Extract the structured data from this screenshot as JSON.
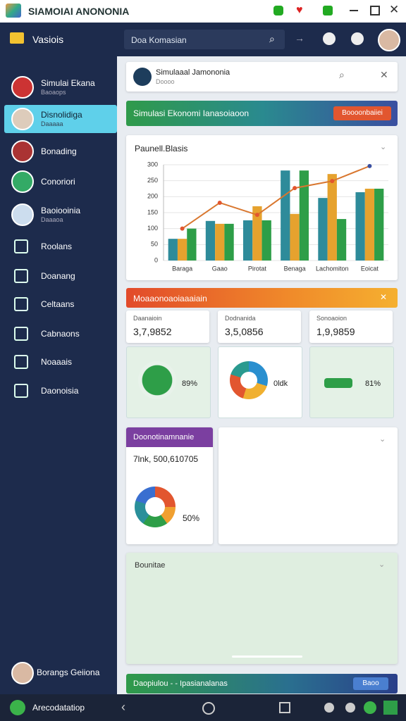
{
  "app": {
    "title": "SIAMOIAI ANONONIA",
    "bottom_label": "Arecodatatiop"
  },
  "sidebar": {
    "header": "Vasiois",
    "items": [
      {
        "label": "Simulai Ekana",
        "sub": "Baoaops"
      },
      {
        "label": "Disnolidiga",
        "sub": "Daaaaa"
      },
      {
        "label": "Bonading"
      },
      {
        "label": "Conoriori"
      },
      {
        "label": "Baoiooinia",
        "sub": "Daaaoa"
      },
      {
        "label": "Roolans"
      },
      {
        "label": "Doanang"
      },
      {
        "label": "Celtaans"
      },
      {
        "label": "Cabnaons"
      },
      {
        "label": "Noaaais"
      },
      {
        "label": "Daonoisia"
      }
    ],
    "profile": "Borangs Geiiona"
  },
  "search": {
    "placeholder": "Doa Komasian"
  },
  "main": {
    "dialog": {
      "title": "Simulaaal Jamononia",
      "sub": "Doooo"
    },
    "banner": {
      "title": "Simulasi Ekonomi Ianasoiaoon",
      "button": "Boooonbaiiei"
    },
    "chart": {
      "type": "bar",
      "title": "Paunell.Blasis",
      "categories": [
        "Baraga",
        "Gaao",
        "Pirotat",
        "Benaga",
        "Lachomiton",
        "Eoicat"
      ],
      "series": [
        {
          "color": "#2e8b9a",
          "values": [
            68,
            124,
            126,
            282,
            196,
            214
          ]
        },
        {
          "color": "#e6a22e",
          "values": [
            68,
            115,
            170,
            146,
            271,
            225
          ]
        },
        {
          "color": "#2e9e48",
          "values": [
            100,
            115,
            126,
            282,
            130,
            225
          ]
        }
      ],
      "line": {
        "color": "#d9772f",
        "values": [
          100,
          181,
          143,
          227,
          249,
          296
        ]
      },
      "ylim": [
        0,
        300
      ],
      "yticks": [
        0,
        50,
        100,
        150,
        200,
        250,
        300
      ],
      "grid": true
    },
    "stats": {
      "header": "Moaaonoaoiaaaiain",
      "cards": [
        {
          "label": "Daanaioin",
          "value": "3,7,9852"
        },
        {
          "label": "Dodnanida",
          "value": "3,5,0856"
        },
        {
          "label": "Sonoaoion",
          "value": "1,9,9859"
        }
      ],
      "tiles": [
        "89%",
        "0ldk",
        "81%"
      ]
    },
    "summary": {
      "title": "Doonotinamnanie",
      "value": "7lnk, 500,610705",
      "percent": "50%"
    },
    "notes": {
      "title": "Bounitae"
    },
    "footer_banner": {
      "title": "Daopiulou - - Ipasianalanas",
      "button": "Baoo"
    }
  }
}
